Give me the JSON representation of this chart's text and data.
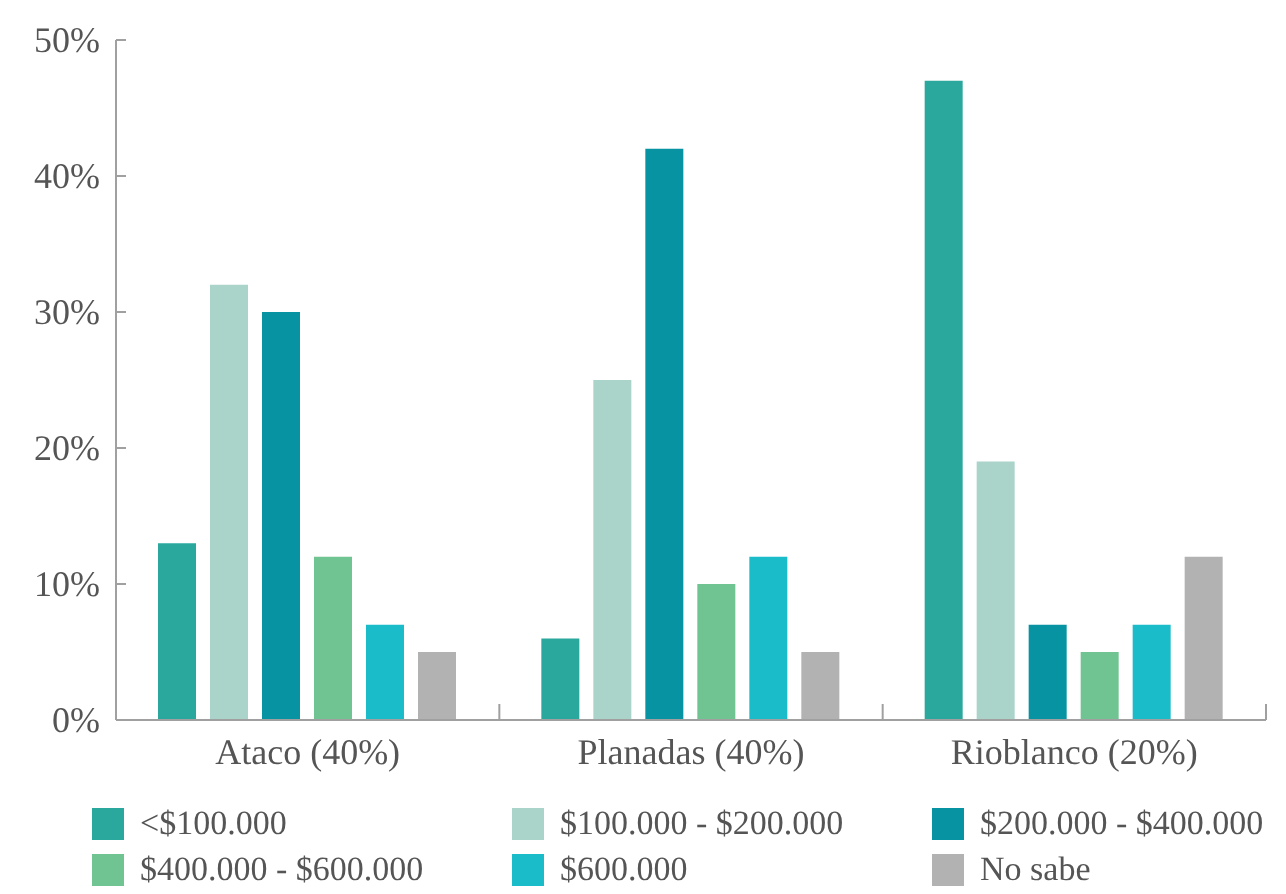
{
  "chart_data": {
    "type": "bar",
    "categories": [
      "Ataco (40%)",
      "Planadas (40%)",
      "Rioblanco (20%)"
    ],
    "series": [
      {
        "name": "<$100.000",
        "color": "#2aa89e",
        "values": [
          13,
          6,
          47
        ]
      },
      {
        "name": "$100.000 - $200.000",
        "color": "#aad4ca",
        "values": [
          32,
          25,
          19
        ]
      },
      {
        "name": "$200.000 - $400.000",
        "color": "#0793a1",
        "values": [
          30,
          42,
          7
        ]
      },
      {
        "name": "$400.000 - $600.000",
        "color": "#70c491",
        "values": [
          12,
          10,
          5
        ]
      },
      {
        "name": "$600.000",
        "color": "#1bbcc9",
        "values": [
          7,
          12,
          7
        ]
      },
      {
        "name": "No sabe",
        "color": "#b2b2b2",
        "values": [
          5,
          5,
          12
        ]
      }
    ],
    "ylim": [
      0,
      50
    ],
    "yticks": [
      {
        "value": 0,
        "label": "0%"
      },
      {
        "value": 10,
        "label": "10%"
      },
      {
        "value": 20,
        "label": "20%"
      },
      {
        "value": 30,
        "label": "30%"
      },
      {
        "value": 40,
        "label": "40%"
      },
      {
        "value": 50,
        "label": "50%"
      }
    ],
    "grid": false,
    "legend": "bottom"
  }
}
